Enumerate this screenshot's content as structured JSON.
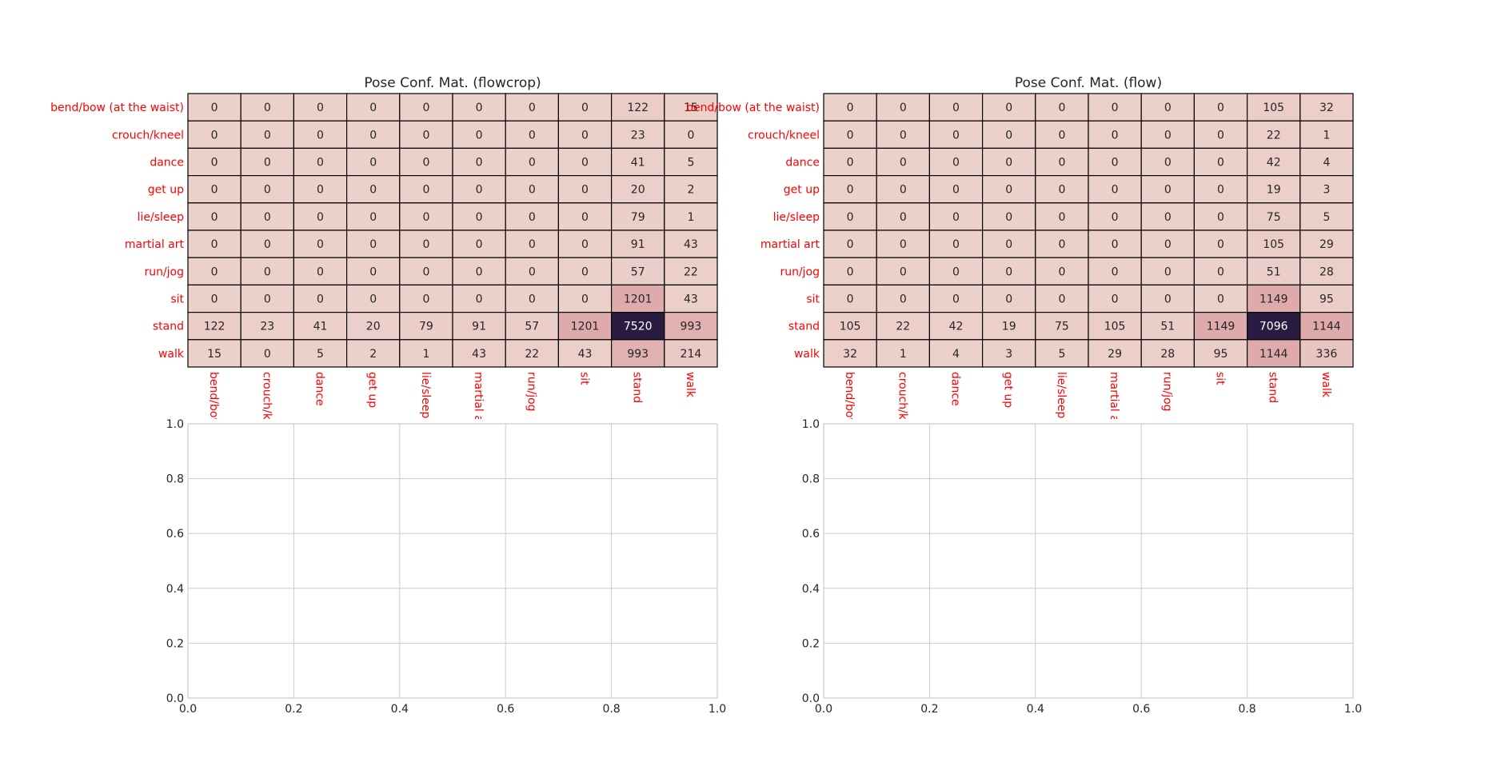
{
  "chart_data": [
    {
      "type": "heatmap",
      "title": "Pose Conf. Mat. (flowcrop)",
      "row_labels": [
        "bend/bow (at the waist)",
        "crouch/kneel",
        "dance",
        "get up",
        "lie/sleep",
        "martial art",
        "run/jog",
        "sit",
        "stand",
        "walk"
      ],
      "col_labels": [
        "bend/bow",
        "crouch/kn",
        "dance",
        "get up",
        "lie/sleep",
        "martial a",
        "run/jog",
        "sit",
        "stand",
        "walk"
      ],
      "matrix": [
        [
          0,
          0,
          0,
          0,
          0,
          0,
          0,
          0,
          122,
          15
        ],
        [
          0,
          0,
          0,
          0,
          0,
          0,
          0,
          0,
          23,
          0
        ],
        [
          0,
          0,
          0,
          0,
          0,
          0,
          0,
          0,
          41,
          5
        ],
        [
          0,
          0,
          0,
          0,
          0,
          0,
          0,
          0,
          20,
          2
        ],
        [
          0,
          0,
          0,
          0,
          0,
          0,
          0,
          0,
          79,
          1
        ],
        [
          0,
          0,
          0,
          0,
          0,
          0,
          0,
          0,
          91,
          43
        ],
        [
          0,
          0,
          0,
          0,
          0,
          0,
          0,
          0,
          57,
          22
        ],
        [
          0,
          0,
          0,
          0,
          0,
          0,
          0,
          0,
          1201,
          43
        ],
        [
          122,
          23,
          41,
          20,
          79,
          91,
          57,
          1201,
          7520,
          993
        ],
        [
          15,
          0,
          5,
          2,
          1,
          43,
          22,
          43,
          993,
          214
        ]
      ],
      "label_color": "#ff0000",
      "grid": false
    },
    {
      "type": "heatmap",
      "title": "Pose Conf. Mat. (flow)",
      "row_labels": [
        "bend/bow (at the waist)",
        "crouch/kneel",
        "dance",
        "get up",
        "lie/sleep",
        "martial art",
        "run/jog",
        "sit",
        "stand",
        "walk"
      ],
      "col_labels": [
        "bend/bow",
        "crouch/kn",
        "dance",
        "get up",
        "lie/sleep",
        "martial a",
        "run/jog",
        "sit",
        "stand",
        "walk"
      ],
      "matrix": [
        [
          0,
          0,
          0,
          0,
          0,
          0,
          0,
          0,
          105,
          32
        ],
        [
          0,
          0,
          0,
          0,
          0,
          0,
          0,
          0,
          22,
          1
        ],
        [
          0,
          0,
          0,
          0,
          0,
          0,
          0,
          0,
          42,
          4
        ],
        [
          0,
          0,
          0,
          0,
          0,
          0,
          0,
          0,
          19,
          3
        ],
        [
          0,
          0,
          0,
          0,
          0,
          0,
          0,
          0,
          75,
          5
        ],
        [
          0,
          0,
          0,
          0,
          0,
          0,
          0,
          0,
          105,
          29
        ],
        [
          0,
          0,
          0,
          0,
          0,
          0,
          0,
          0,
          51,
          28
        ],
        [
          0,
          0,
          0,
          0,
          0,
          0,
          0,
          0,
          1149,
          95
        ],
        [
          105,
          22,
          42,
          19,
          75,
          105,
          51,
          1149,
          7096,
          1144
        ],
        [
          32,
          1,
          4,
          3,
          5,
          29,
          28,
          95,
          1144,
          336
        ]
      ],
      "label_color": "#ff0000",
      "grid": false
    },
    {
      "type": "line",
      "title": "",
      "series": [],
      "xlim": [
        0,
        1
      ],
      "ylim": [
        0,
        1
      ],
      "xticks": [
        "0.0",
        "0.2",
        "0.4",
        "0.6",
        "0.8",
        "1.0"
      ],
      "yticks": [
        "0.0",
        "0.2",
        "0.4",
        "0.6",
        "0.8",
        "1.0"
      ],
      "grid": true
    },
    {
      "type": "line",
      "title": "",
      "series": [],
      "xlim": [
        0,
        1
      ],
      "ylim": [
        0,
        1
      ],
      "xticks": [
        "0.0",
        "0.2",
        "0.4",
        "0.6",
        "0.8",
        "1.0"
      ],
      "yticks": [
        "0.0",
        "0.2",
        "0.4",
        "0.6",
        "0.8",
        "1.0"
      ],
      "grid": true
    }
  ],
  "colors": {
    "low": "#ecd0ca",
    "mid": "#dfaaac",
    "high": "#2a1c40",
    "cell_border": "#000000",
    "label": "#ff0000",
    "axis_text": "#262626",
    "grid": "#cccccc"
  }
}
